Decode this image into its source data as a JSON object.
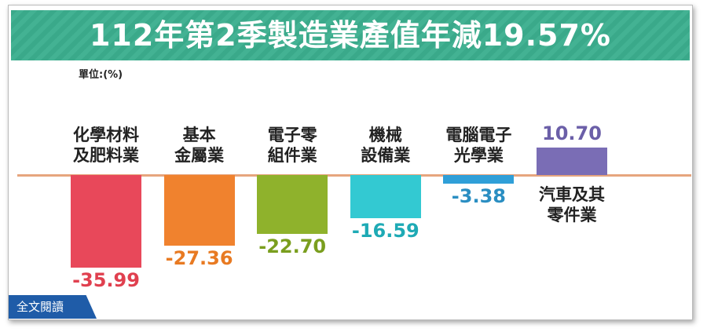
{
  "chart_data": {
    "type": "bar",
    "title": "112年第2季製造業產值年減19.57%",
    "unit": "單位:(%)",
    "categories": [
      "化學材料\n及肥料業",
      "基本\n金屬業",
      "電子零\n組件業",
      "機械\n設備業",
      "電腦電子\n光學業",
      "汽車及其\n零件業"
    ],
    "values": [
      -35.99,
      -27.36,
      -22.7,
      -16.59,
      -3.38,
      10.7
    ],
    "value_labels": [
      "-35.99",
      "-27.36",
      "-22.70",
      "-16.59",
      "-3.38",
      "10.70"
    ],
    "colors": [
      "#e8485a",
      "#f0822e",
      "#8fb22c",
      "#33c9d2",
      "#2f9fd8",
      "#7a6db5"
    ],
    "label_colors": [
      "#e0404f",
      "#e87a22",
      "#7a9e1e",
      "#1eaab5",
      "#2a8ec2",
      "#6b5fa8"
    ],
    "ylim": [
      -38,
      14
    ]
  },
  "button": "全文閱讀"
}
